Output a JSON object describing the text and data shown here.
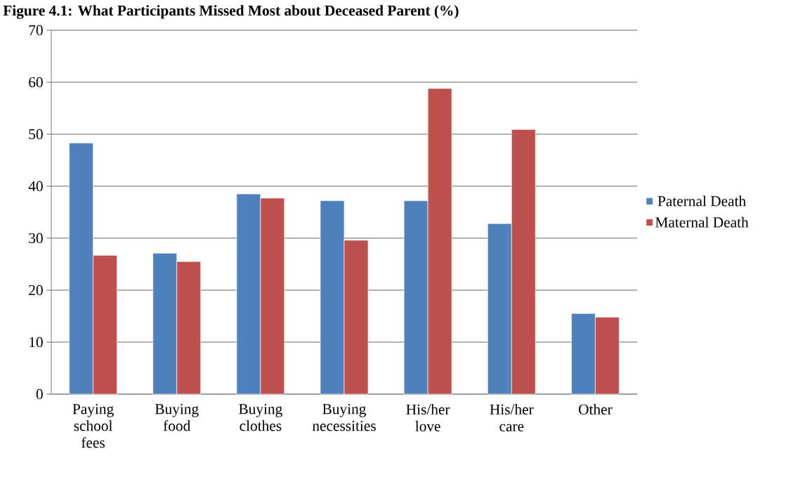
{
  "chart_data": {
    "type": "bar",
    "title": "Figure 4.1: What Participants Missed Most about Deceased Parent (%)",
    "categories": [
      "Paying school fees",
      "Buying food",
      "Buying clothes",
      "Buying necessities",
      "His/her love",
      "His/her care",
      "Other"
    ],
    "series": [
      {
        "name": "Paternal Death",
        "color": "#4f81bd",
        "values": [
          48.3,
          27.1,
          38.5,
          37.2,
          37.2,
          32.8,
          15.5
        ]
      },
      {
        "name": "Maternal Death",
        "color": "#c0504d",
        "values": [
          26.7,
          25.5,
          37.7,
          29.6,
          58.8,
          50.9,
          14.8
        ]
      }
    ],
    "ylim": [
      0,
      70
    ],
    "yticks": [
      0,
      10,
      20,
      30,
      40,
      50,
      60,
      70
    ],
    "grid": "y",
    "legend": "right"
  }
}
